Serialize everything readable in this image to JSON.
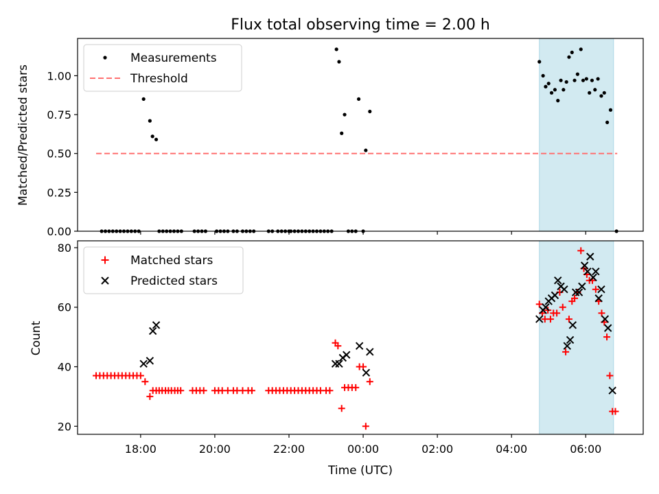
{
  "title": "Flux total observing time = 2.00 h",
  "colors": {
    "measurement": "#000000",
    "threshold": "#ff7070",
    "matched": "#ff0000",
    "predicted": "#000000",
    "span_fill": "#add8e6"
  },
  "chart_data": [
    {
      "type": "scatter",
      "ylabel": "Matched/Predicted stars",
      "ylim": [
        0,
        1.24
      ],
      "xlim": [
        16.3,
        31.55
      ],
      "yticks": [
        "0.00",
        "0.25",
        "0.50",
        "0.75",
        "1.00"
      ],
      "ytick_values": [
        0,
        0.25,
        0.5,
        0.75,
        1.0
      ],
      "legend": [
        "Measurements",
        "Threshold"
      ],
      "legend_position": "top-left",
      "highlight_span": [
        28.75,
        30.75
      ],
      "threshold": {
        "name": "Threshold",
        "value": 0.5,
        "x_range": [
          16.8,
          30.85
        ]
      },
      "series": [
        {
          "name": "Measurements",
          "marker": "dot",
          "points": [
            [
              16.95,
              0
            ],
            [
              17.05,
              0
            ],
            [
              17.15,
              0
            ],
            [
              17.25,
              0
            ],
            [
              17.35,
              0
            ],
            [
              17.45,
              0
            ],
            [
              17.55,
              0
            ],
            [
              17.65,
              0
            ],
            [
              17.75,
              0
            ],
            [
              17.85,
              0
            ],
            [
              17.95,
              0
            ],
            [
              18.08,
              0.85
            ],
            [
              18.25,
              0.71
            ],
            [
              18.32,
              0.61
            ],
            [
              18.42,
              0.59
            ],
            [
              18.5,
              0
            ],
            [
              18.6,
              0
            ],
            [
              18.7,
              0
            ],
            [
              18.8,
              0
            ],
            [
              18.9,
              0
            ],
            [
              19.0,
              0
            ],
            [
              19.1,
              0
            ],
            [
              19.45,
              0
            ],
            [
              19.55,
              0
            ],
            [
              19.65,
              0
            ],
            [
              19.75,
              0
            ],
            [
              20.05,
              0
            ],
            [
              20.15,
              0
            ],
            [
              20.25,
              0
            ],
            [
              20.35,
              0
            ],
            [
              20.5,
              0
            ],
            [
              20.6,
              0
            ],
            [
              20.75,
              0
            ],
            [
              20.85,
              0
            ],
            [
              20.95,
              0
            ],
            [
              21.05,
              0
            ],
            [
              21.45,
              0
            ],
            [
              21.55,
              0
            ],
            [
              21.7,
              0
            ],
            [
              21.8,
              0
            ],
            [
              21.9,
              0
            ],
            [
              22.0,
              0
            ],
            [
              22.05,
              0
            ],
            [
              22.15,
              0
            ],
            [
              22.25,
              0
            ],
            [
              22.35,
              0
            ],
            [
              22.45,
              0
            ],
            [
              22.55,
              0
            ],
            [
              22.65,
              0
            ],
            [
              22.75,
              0
            ],
            [
              22.85,
              0
            ],
            [
              22.95,
              0
            ],
            [
              23.05,
              0
            ],
            [
              23.15,
              0
            ],
            [
              23.28,
              1.17
            ],
            [
              23.35,
              1.09
            ],
            [
              23.42,
              0.63
            ],
            [
              23.5,
              0.75
            ],
            [
              23.6,
              0
            ],
            [
              23.7,
              0
            ],
            [
              23.8,
              0
            ],
            [
              23.88,
              0.85
            ],
            [
              24.0,
              0
            ],
            [
              24.07,
              0.52
            ],
            [
              24.18,
              0.77
            ],
            [
              28.75,
              1.09
            ],
            [
              28.85,
              1.0
            ],
            [
              28.92,
              0.93
            ],
            [
              29.0,
              0.95
            ],
            [
              29.08,
              0.89
            ],
            [
              29.17,
              0.91
            ],
            [
              29.25,
              0.84
            ],
            [
              29.33,
              0.97
            ],
            [
              29.4,
              0.91
            ],
            [
              29.48,
              0.96
            ],
            [
              29.55,
              1.12
            ],
            [
              29.63,
              1.15
            ],
            [
              29.7,
              0.97
            ],
            [
              29.78,
              1.01
            ],
            [
              29.87,
              1.17
            ],
            [
              29.93,
              0.97
            ],
            [
              30.02,
              0.98
            ],
            [
              30.1,
              0.89
            ],
            [
              30.17,
              0.97
            ],
            [
              30.25,
              0.91
            ],
            [
              30.33,
              0.98
            ],
            [
              30.42,
              0.87
            ],
            [
              30.5,
              0.89
            ],
            [
              30.58,
              0.7
            ],
            [
              30.67,
              0.78
            ],
            [
              30.83,
              0
            ]
          ]
        }
      ]
    },
    {
      "type": "scatter",
      "xlabel": "Time (UTC)",
      "ylabel": "Count",
      "ylim": [
        17.3,
        82.3
      ],
      "xlim": [
        16.3,
        31.55
      ],
      "yticks": [
        "20",
        "40",
        "60",
        "80"
      ],
      "ytick_values": [
        20,
        40,
        60,
        80
      ],
      "xticks": [
        "18:00",
        "20:00",
        "22:00",
        "00:00",
        "02:00",
        "04:00",
        "06:00"
      ],
      "xtick_values": [
        18,
        20,
        22,
        24,
        26,
        28,
        30
      ],
      "legend": [
        "Matched stars",
        "Predicted stars"
      ],
      "legend_position": "top-left",
      "highlight_span": [
        28.75,
        30.75
      ],
      "series": [
        {
          "name": "Matched stars",
          "marker": "plus",
          "points": [
            [
              16.8,
              37
            ],
            [
              16.9,
              37
            ],
            [
              17.0,
              37
            ],
            [
              17.1,
              37
            ],
            [
              17.2,
              37
            ],
            [
              17.3,
              37
            ],
            [
              17.4,
              37
            ],
            [
              17.5,
              37
            ],
            [
              17.6,
              37
            ],
            [
              17.7,
              37
            ],
            [
              17.8,
              37
            ],
            [
              17.9,
              37
            ],
            [
              18.0,
              37
            ],
            [
              18.12,
              35
            ],
            [
              18.25,
              30
            ],
            [
              18.33,
              32
            ],
            [
              18.42,
              32
            ],
            [
              18.5,
              32
            ],
            [
              18.58,
              32
            ],
            [
              18.67,
              32
            ],
            [
              18.75,
              32
            ],
            [
              18.83,
              32
            ],
            [
              18.92,
              32
            ],
            [
              19.0,
              32
            ],
            [
              19.08,
              32
            ],
            [
              19.4,
              32
            ],
            [
              19.5,
              32
            ],
            [
              19.6,
              32
            ],
            [
              19.7,
              32
            ],
            [
              20.0,
              32
            ],
            [
              20.1,
              32
            ],
            [
              20.2,
              32
            ],
            [
              20.35,
              32
            ],
            [
              20.5,
              32
            ],
            [
              20.6,
              32
            ],
            [
              20.75,
              32
            ],
            [
              20.9,
              32
            ],
            [
              21.0,
              32
            ],
            [
              21.45,
              32
            ],
            [
              21.55,
              32
            ],
            [
              21.65,
              32
            ],
            [
              21.75,
              32
            ],
            [
              21.85,
              32
            ],
            [
              21.95,
              32
            ],
            [
              22.05,
              32
            ],
            [
              22.15,
              32
            ],
            [
              22.25,
              32
            ],
            [
              22.35,
              32
            ],
            [
              22.45,
              32
            ],
            [
              22.55,
              32
            ],
            [
              22.65,
              32
            ],
            [
              22.75,
              32
            ],
            [
              22.85,
              32
            ],
            [
              23.0,
              32
            ],
            [
              23.1,
              32
            ],
            [
              23.25,
              48
            ],
            [
              23.32,
              47
            ],
            [
              23.42,
              26
            ],
            [
              23.5,
              33
            ],
            [
              23.6,
              33
            ],
            [
              23.7,
              33
            ],
            [
              23.8,
              33
            ],
            [
              23.9,
              40
            ],
            [
              24.0,
              40
            ],
            [
              24.07,
              20
            ],
            [
              24.18,
              35
            ],
            [
              28.75,
              61
            ],
            [
              28.83,
              58
            ],
            [
              28.9,
              56
            ],
            [
              28.98,
              59
            ],
            [
              29.05,
              56
            ],
            [
              29.13,
              58
            ],
            [
              29.22,
              58
            ],
            [
              29.3,
              65
            ],
            [
              29.38,
              60
            ],
            [
              29.46,
              45
            ],
            [
              29.55,
              56
            ],
            [
              29.63,
              62
            ],
            [
              29.7,
              63
            ],
            [
              29.78,
              65
            ],
            [
              29.87,
              79
            ],
            [
              29.95,
              73
            ],
            [
              30.03,
              71
            ],
            [
              30.1,
              69
            ],
            [
              30.18,
              69
            ],
            [
              30.27,
              66
            ],
            [
              30.35,
              62
            ],
            [
              30.43,
              58
            ],
            [
              30.5,
              55
            ],
            [
              30.57,
              50
            ],
            [
              30.65,
              37
            ],
            [
              30.72,
              25
            ],
            [
              30.8,
              25
            ]
          ]
        },
        {
          "name": "Predicted stars",
          "marker": "x",
          "points": [
            [
              18.08,
              41
            ],
            [
              18.25,
              42
            ],
            [
              18.33,
              52
            ],
            [
              18.42,
              54
            ],
            [
              23.25,
              41
            ],
            [
              23.35,
              41
            ],
            [
              23.45,
              43
            ],
            [
              23.55,
              44
            ],
            [
              23.9,
              47
            ],
            [
              24.08,
              38
            ],
            [
              24.18,
              45
            ],
            [
              28.75,
              56
            ],
            [
              28.85,
              59
            ],
            [
              28.92,
              60
            ],
            [
              29.0,
              62
            ],
            [
              29.08,
              63
            ],
            [
              29.17,
              64
            ],
            [
              29.25,
              69
            ],
            [
              29.33,
              67
            ],
            [
              29.42,
              66
            ],
            [
              29.5,
              47
            ],
            [
              29.58,
              49
            ],
            [
              29.65,
              54
            ],
            [
              29.73,
              65
            ],
            [
              29.82,
              65
            ],
            [
              29.9,
              67
            ],
            [
              29.97,
              74
            ],
            [
              30.05,
              72
            ],
            [
              30.12,
              77
            ],
            [
              30.2,
              70
            ],
            [
              30.27,
              72
            ],
            [
              30.35,
              63
            ],
            [
              30.42,
              66
            ],
            [
              30.52,
              56
            ],
            [
              30.6,
              53
            ],
            [
              30.72,
              32
            ]
          ]
        }
      ]
    }
  ]
}
